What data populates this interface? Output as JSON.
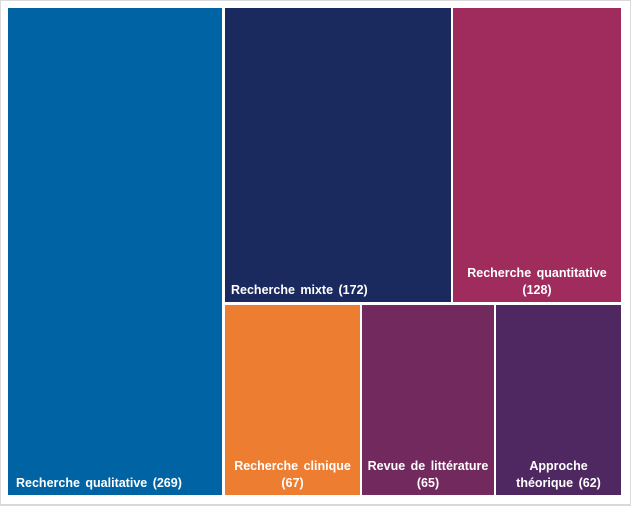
{
  "chart_data": {
    "type": "treemap",
    "title": "",
    "items": [
      {
        "name": "Recherche qualitative",
        "value": 269,
        "label_lines": [
          "Recherche qualitative (269)"
        ],
        "color": "#0063a3"
      },
      {
        "name": "Recherche mixte",
        "value": 172,
        "label_lines": [
          "Recherche mixte (172)"
        ],
        "color": "#1b2a5e"
      },
      {
        "name": "Recherche quantitative",
        "value": 128,
        "label_lines": [
          "Recherche quantitative",
          "(128)"
        ],
        "color": "#a02c5e"
      },
      {
        "name": "Recherche clinique",
        "value": 67,
        "label_lines": [
          "Recherche clinique",
          "(67)"
        ],
        "color": "#ed7d31"
      },
      {
        "name": "Revue de littérature",
        "value": 65,
        "label_lines": [
          "Revue de littérature",
          "(65)"
        ],
        "color": "#722a5e"
      },
      {
        "name": "Approche théorique",
        "value": 62,
        "label_lines": [
          "Approche",
          "théorique (62)"
        ],
        "color": "#4f2862"
      }
    ]
  }
}
